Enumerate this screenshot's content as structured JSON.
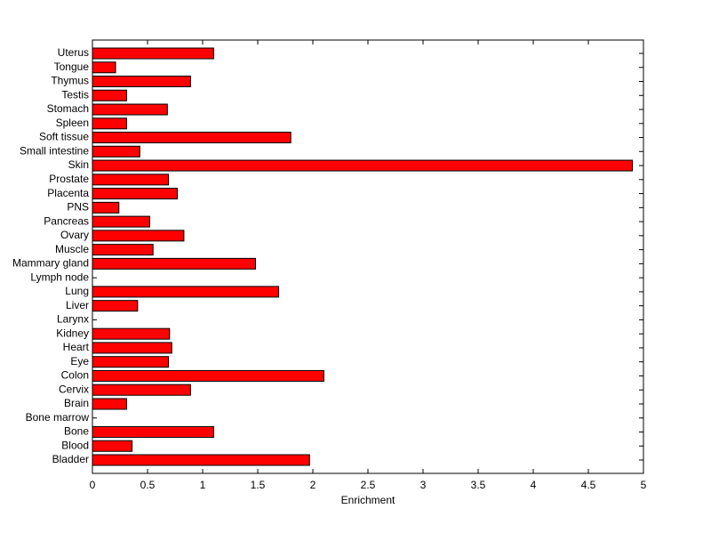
{
  "chart_data": {
    "type": "barh",
    "x_label": "Enrichment",
    "categories": [
      "Uterus",
      "Tongue",
      "Thymus",
      "Testis",
      "Stomach",
      "Spleen",
      "Soft tissue",
      "Small intestine",
      "Skin",
      "Prostate",
      "Placenta",
      "PNS",
      "Pancreas",
      "Ovary",
      "Muscle",
      "Mammary gland",
      "Lymph node",
      "Lung",
      "Liver",
      "Larynx",
      "Kidney",
      "Heart",
      "Eye",
      "Colon",
      "Cervix",
      "Brain",
      "Bone marrow",
      "Bone",
      "Blood",
      "Bladder"
    ],
    "values": [
      1.1,
      0.21,
      0.89,
      0.31,
      0.68,
      0.31,
      1.8,
      0.43,
      4.9,
      0.69,
      0.77,
      0.24,
      0.52,
      0.83,
      0.55,
      1.48,
      0,
      1.69,
      0.41,
      0,
      0.7,
      0.72,
      0.69,
      2.1,
      0.89,
      0.31,
      0,
      1.1,
      0.36,
      1.97
    ],
    "color": "#ff0000",
    "xlim": [
      0,
      5
    ],
    "xticks": [
      0,
      0.5,
      1,
      1.5,
      2,
      2.5,
      3,
      3.5,
      4,
      4.5,
      5
    ]
  }
}
